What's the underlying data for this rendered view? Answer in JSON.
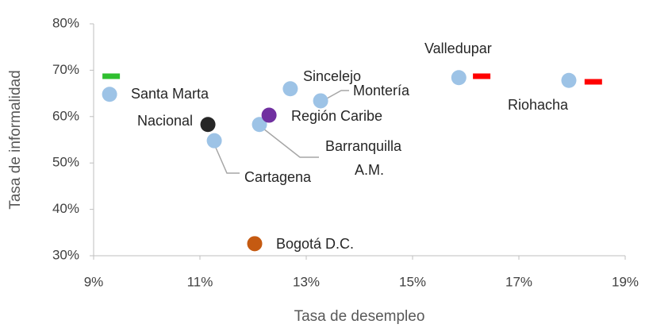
{
  "chart_data": {
    "type": "scatter",
    "x_label": "Tasa de desempleo",
    "y_label": "Tasa de informalidad",
    "xlim": [
      9,
      19
    ],
    "ylim": [
      30,
      80
    ],
    "xticks": [
      {
        "value": 9,
        "label": "9%"
      },
      {
        "value": 11,
        "label": "11%"
      },
      {
        "value": 13,
        "label": "13%"
      },
      {
        "value": 15,
        "label": "15%"
      },
      {
        "value": 17,
        "label": "17%"
      },
      {
        "value": 19,
        "label": "19%"
      }
    ],
    "yticks": [
      {
        "value": 30,
        "label": "30%"
      },
      {
        "value": 40,
        "label": "40%"
      },
      {
        "value": 50,
        "label": "50%"
      },
      {
        "value": 60,
        "label": "60%"
      },
      {
        "value": 70,
        "label": "70%"
      },
      {
        "value": 80,
        "label": "80%"
      }
    ],
    "points": {
      "labels": [
        "Santa Marta",
        "Nacional",
        "Cartagena",
        "Barranquilla A.M.",
        "Región Caribe",
        "Sincelejo",
        "Montería",
        "Valledupar",
        "Riohacha",
        "Bogotá D.C."
      ],
      "x": [
        9.3,
        11.15,
        11.27,
        12.12,
        12.3,
        12.7,
        13.27,
        15.87,
        17.94,
        12.03
      ],
      "values": [
        64.8,
        58.3,
        54.8,
        58.3,
        60.3,
        66.0,
        63.4,
        68.4,
        67.8,
        32.6
      ],
      "colors": [
        "#9dc3e6",
        "#262626",
        "#9dc3e6",
        "#9dc3e6",
        "#7030a0",
        "#9dc3e6",
        "#9dc3e6",
        "#9dc3e6",
        "#9dc3e6",
        "#c55a11"
      ]
    },
    "dashes": {
      "x": [
        9.33,
        16.3,
        18.4
      ],
      "values": [
        68.7,
        68.7,
        67.5
      ],
      "colors": [
        "#2fbf2f",
        "#ff0000",
        "#ff0000"
      ]
    }
  }
}
